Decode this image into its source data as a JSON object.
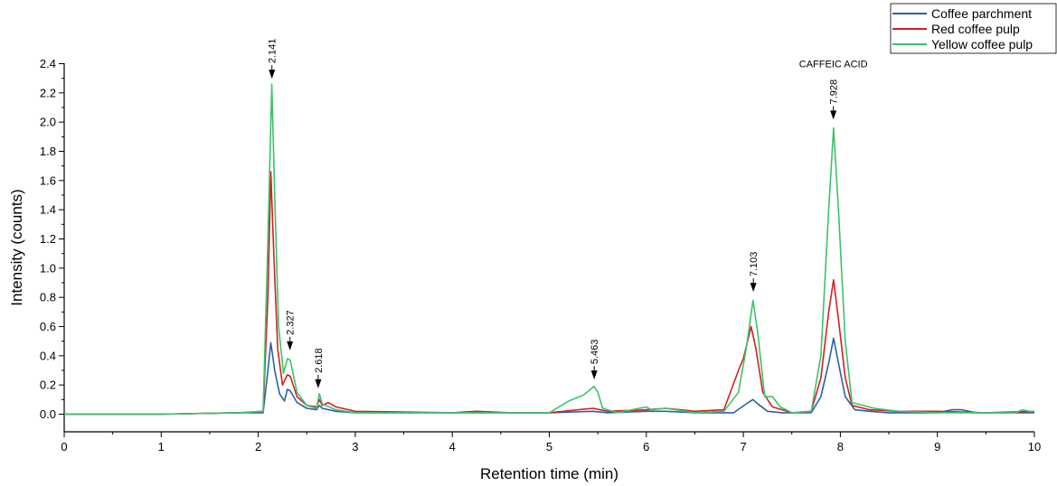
{
  "chart_data": {
    "type": "line",
    "xlabel": "Retention time (min)",
    "ylabel": "Intensity (counts)",
    "xlim": [
      0,
      10
    ],
    "ylim": [
      -0.08,
      2.4
    ],
    "x_ticks": [
      "0",
      "1",
      "2",
      "3",
      "4",
      "5",
      "6",
      "7",
      "8",
      "9",
      "10"
    ],
    "y_ticks": [
      "0.0",
      "0.2",
      "0.4",
      "0.6",
      "0.8",
      "1.0",
      "1.2",
      "1.4",
      "1.6",
      "1.8",
      "2.0",
      "2.2",
      "2.4"
    ],
    "grid": false,
    "legend_position": "top-right",
    "series": [
      {
        "name": "Coffee parchment",
        "color": "#2c5fa8",
        "points": [
          [
            0,
            0
          ],
          [
            1.0,
            0
          ],
          [
            1.8,
            0.01
          ],
          [
            2.05,
            0.01
          ],
          [
            2.1,
            0.3
          ],
          [
            2.13,
            0.49
          ],
          [
            2.17,
            0.3
          ],
          [
            2.22,
            0.14
          ],
          [
            2.27,
            0.09
          ],
          [
            2.3,
            0.17
          ],
          [
            2.33,
            0.16
          ],
          [
            2.4,
            0.08
          ],
          [
            2.5,
            0.04
          ],
          [
            2.6,
            0.03
          ],
          [
            2.63,
            0.06
          ],
          [
            2.66,
            0.04
          ],
          [
            2.8,
            0.02
          ],
          [
            3.0,
            0.01
          ],
          [
            4.0,
            0.01
          ],
          [
            5.0,
            0.01
          ],
          [
            5.45,
            0.02
          ],
          [
            5.6,
            0.01
          ],
          [
            6.0,
            0.02
          ],
          [
            6.2,
            0.02
          ],
          [
            6.5,
            0.01
          ],
          [
            6.9,
            0.01
          ],
          [
            7.05,
            0.08
          ],
          [
            7.1,
            0.1
          ],
          [
            7.15,
            0.07
          ],
          [
            7.25,
            0.02
          ],
          [
            7.4,
            0.01
          ],
          [
            7.7,
            0.01
          ],
          [
            7.8,
            0.12
          ],
          [
            7.88,
            0.35
          ],
          [
            7.93,
            0.52
          ],
          [
            7.98,
            0.35
          ],
          [
            8.05,
            0.12
          ],
          [
            8.15,
            0.03
          ],
          [
            8.3,
            0.02
          ],
          [
            8.5,
            0.01
          ],
          [
            9.0,
            0.01
          ],
          [
            9.15,
            0.03
          ],
          [
            9.25,
            0.03
          ],
          [
            9.4,
            0.01
          ],
          [
            10.0,
            0.01
          ]
        ]
      },
      {
        "name": "Red coffee pulp",
        "color": "#d42020",
        "points": [
          [
            0,
            0
          ],
          [
            1.0,
            0
          ],
          [
            1.8,
            0.01
          ],
          [
            2.05,
            0.02
          ],
          [
            2.1,
            0.8
          ],
          [
            2.13,
            1.66
          ],
          [
            2.16,
            1.1
          ],
          [
            2.2,
            0.45
          ],
          [
            2.25,
            0.2
          ],
          [
            2.3,
            0.27
          ],
          [
            2.33,
            0.26
          ],
          [
            2.4,
            0.12
          ],
          [
            2.5,
            0.06
          ],
          [
            2.6,
            0.05
          ],
          [
            2.63,
            0.1
          ],
          [
            2.66,
            0.06
          ],
          [
            2.72,
            0.08
          ],
          [
            2.8,
            0.05
          ],
          [
            3.0,
            0.02
          ],
          [
            4.0,
            0.01
          ],
          [
            4.25,
            0.02
          ],
          [
            4.6,
            0.01
          ],
          [
            5.0,
            0.01
          ],
          [
            5.3,
            0.03
          ],
          [
            5.45,
            0.04
          ],
          [
            5.6,
            0.02
          ],
          [
            6.0,
            0.03
          ],
          [
            6.2,
            0.04
          ],
          [
            6.5,
            0.02
          ],
          [
            6.8,
            0.03
          ],
          [
            6.95,
            0.3
          ],
          [
            7.0,
            0.38
          ],
          [
            7.08,
            0.6
          ],
          [
            7.13,
            0.45
          ],
          [
            7.2,
            0.15
          ],
          [
            7.3,
            0.05
          ],
          [
            7.5,
            0.01
          ],
          [
            7.7,
            0.02
          ],
          [
            7.8,
            0.25
          ],
          [
            7.88,
            0.7
          ],
          [
            7.93,
            0.92
          ],
          [
            7.98,
            0.65
          ],
          [
            8.05,
            0.25
          ],
          [
            8.12,
            0.06
          ],
          [
            8.3,
            0.03
          ],
          [
            8.6,
            0.02
          ],
          [
            9.0,
            0.02
          ],
          [
            9.5,
            0.01
          ],
          [
            10.0,
            0.02
          ]
        ]
      },
      {
        "name": "Yellow coffee pulp",
        "color": "#3cc46a",
        "points": [
          [
            0,
            0
          ],
          [
            1.0,
            0
          ],
          [
            1.8,
            0.01
          ],
          [
            2.05,
            0.02
          ],
          [
            2.1,
            1.2
          ],
          [
            2.14,
            2.26
          ],
          [
            2.17,
            1.5
          ],
          [
            2.21,
            0.6
          ],
          [
            2.26,
            0.28
          ],
          [
            2.3,
            0.38
          ],
          [
            2.33,
            0.37
          ],
          [
            2.4,
            0.15
          ],
          [
            2.5,
            0.06
          ],
          [
            2.6,
            0.04
          ],
          [
            2.63,
            0.14
          ],
          [
            2.66,
            0.07
          ],
          [
            2.8,
            0.03
          ],
          [
            3.0,
            0.01
          ],
          [
            4.0,
            0.01
          ],
          [
            5.0,
            0.01
          ],
          [
            5.1,
            0.05
          ],
          [
            5.2,
            0.09
          ],
          [
            5.35,
            0.13
          ],
          [
            5.46,
            0.19
          ],
          [
            5.5,
            0.15
          ],
          [
            5.55,
            0.04
          ],
          [
            5.7,
            0.01
          ],
          [
            6.0,
            0.05
          ],
          [
            6.05,
            0.03
          ],
          [
            6.2,
            0.04
          ],
          [
            6.5,
            0.01
          ],
          [
            6.8,
            0.02
          ],
          [
            6.95,
            0.15
          ],
          [
            7.03,
            0.45
          ],
          [
            7.1,
            0.78
          ],
          [
            7.15,
            0.55
          ],
          [
            7.22,
            0.12
          ],
          [
            7.3,
            0.12
          ],
          [
            7.38,
            0.05
          ],
          [
            7.5,
            0.01
          ],
          [
            7.7,
            0.02
          ],
          [
            7.8,
            0.4
          ],
          [
            7.88,
            1.4
          ],
          [
            7.93,
            1.96
          ],
          [
            7.98,
            1.4
          ],
          [
            8.05,
            0.5
          ],
          [
            8.12,
            0.08
          ],
          [
            8.35,
            0.04
          ],
          [
            8.6,
            0.02
          ],
          [
            9.0,
            0.01
          ],
          [
            9.8,
            0.01
          ],
          [
            9.88,
            0.03
          ],
          [
            9.95,
            0.02
          ],
          [
            10.0,
            0.02
          ]
        ]
      }
    ],
    "annotations": [
      {
        "label": "2.141",
        "x": 2.141,
        "y": 2.26,
        "note": ""
      },
      {
        "label": "2.327",
        "x": 2.327,
        "y": 0.4,
        "note": ""
      },
      {
        "label": "2.618",
        "x": 2.618,
        "y": 0.14,
        "note": ""
      },
      {
        "label": "5.463",
        "x": 5.463,
        "y": 0.2,
        "note": ""
      },
      {
        "label": "7.103",
        "x": 7.103,
        "y": 0.8,
        "note": ""
      },
      {
        "label": "7.928",
        "x": 7.928,
        "y": 1.98,
        "note": "CAFFEIC ACID"
      }
    ]
  }
}
